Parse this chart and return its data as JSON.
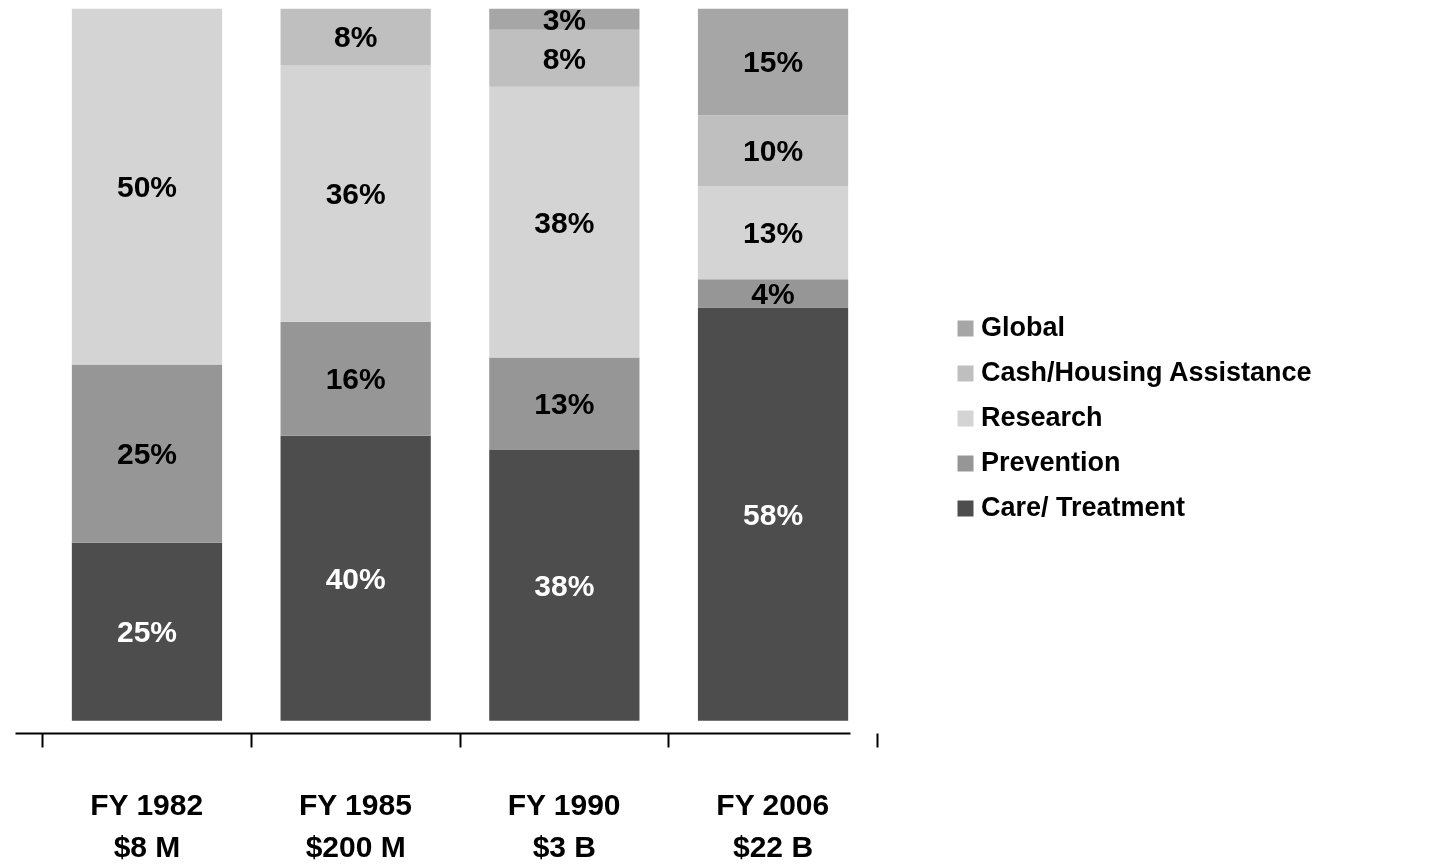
{
  "chart_data": {
    "type": "bar",
    "stacked": true,
    "legend": "right",
    "grid": false,
    "data_labels": false,
    "categories": [
      "FY 1982\n$8 M",
      "FY 1985\n$200 M",
      "FY 1990\n$3 B",
      "FY 2006\n$22 B"
    ],
    "series": [
      {
        "name": "Care/ Treatment",
        "color": "#4d4d4d",
        "values": [
          25,
          40,
          38,
          58
        ],
        "value_labels": [
          "25%",
          "40%",
          "38%",
          "58%"
        ]
      },
      {
        "name": "Prevention",
        "color": "#969696",
        "values": [
          25,
          16,
          13,
          4
        ],
        "value_labels": [
          "25%",
          "16%",
          "13%",
          "4%"
        ]
      },
      {
        "name": "Research",
        "color": "#d4d4d4",
        "values": [
          50,
          36,
          38,
          13
        ],
        "value_labels": [
          "50%",
          "36%",
          "38%",
          "13%"
        ]
      },
      {
        "name": "Cash/Housing Assistance",
        "color": "#bfbfbf",
        "values": [
          null,
          8,
          8,
          10
        ],
        "value_labels": [
          null,
          "8%",
          "8%",
          "10%"
        ]
      },
      {
        "name": "Global",
        "color": "#a6a6a6",
        "values": [
          null,
          null,
          3,
          15
        ],
        "value_labels": [
          null,
          null,
          "3%",
          "15%"
        ]
      }
    ]
  }
}
